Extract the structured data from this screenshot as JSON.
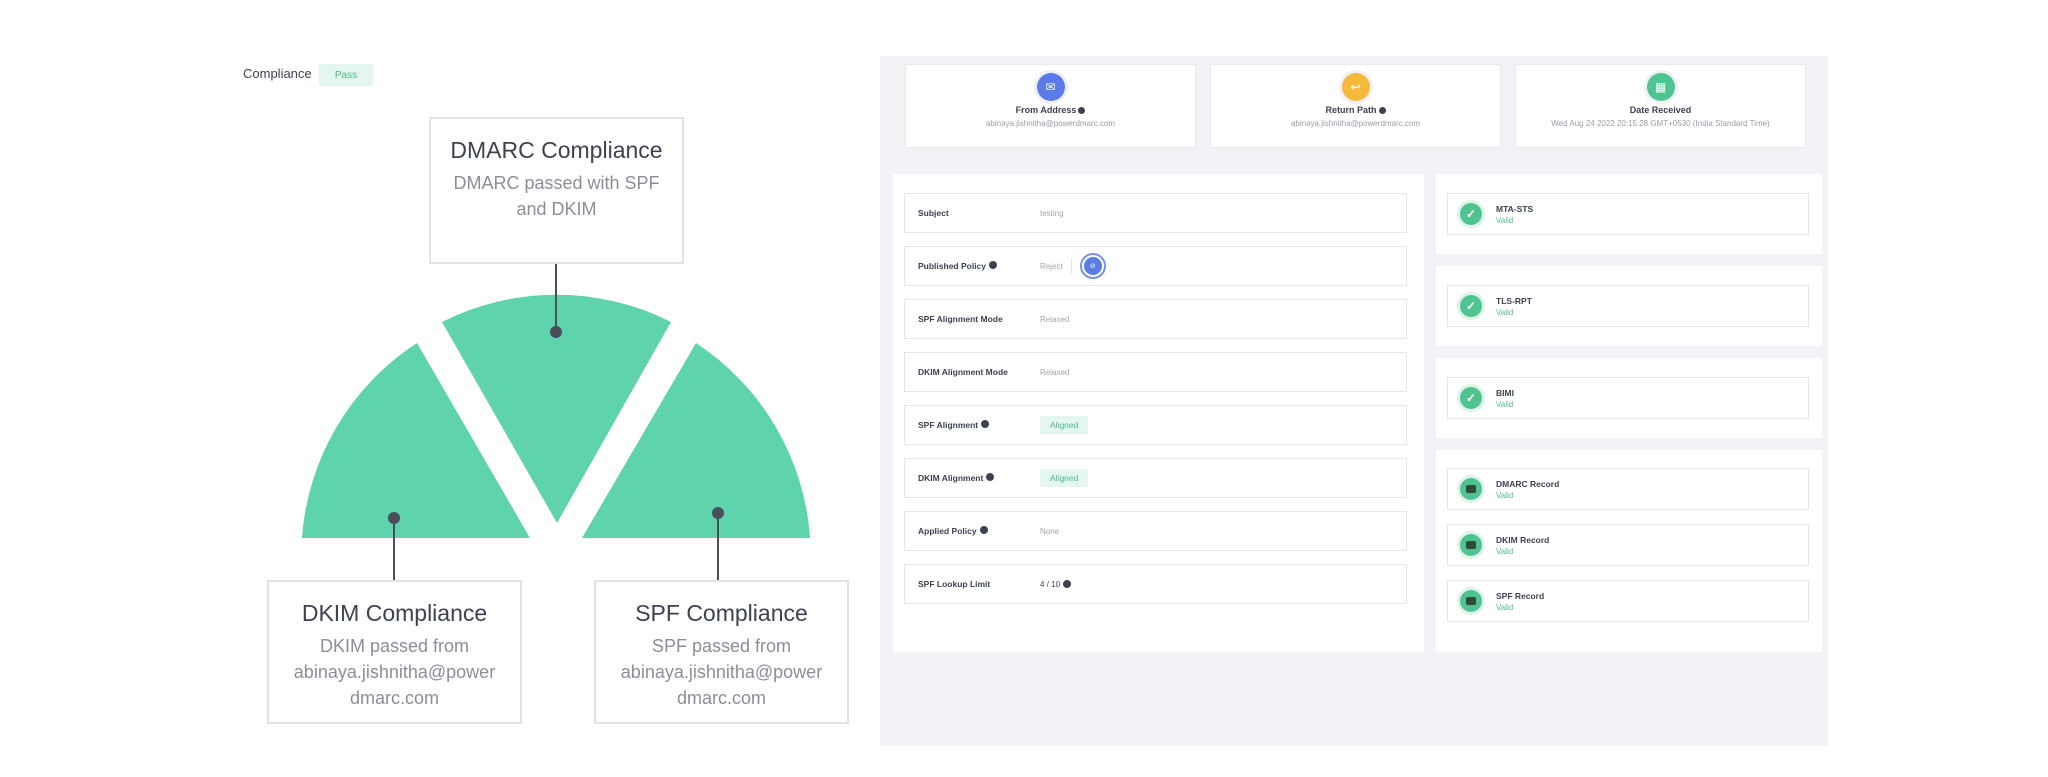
{
  "compliance": {
    "label": "Compliance",
    "badge": "Pass"
  },
  "diagram": {
    "dmarc": {
      "title": "DMARC Compliance",
      "desc_line1": "DMARC passed with SPF",
      "desc_line2": "and DKIM"
    },
    "dkim": {
      "title": "DKIM Compliance",
      "desc_line1": "DKIM passed from",
      "desc_line2": "abinaya.jishnitha@power",
      "desc_line3": "dmarc.com"
    },
    "spf": {
      "title": "SPF Compliance",
      "desc_line1": "SPF passed from",
      "desc_line2": "abinaya.jishnitha@power",
      "desc_line3": "dmarc.com"
    },
    "colors": {
      "segment": "#5fd3ac",
      "line": "#4a4d5c",
      "border": "#dfe2e6"
    }
  },
  "info_cards": {
    "from": {
      "label": "From Address",
      "value": "abinaya.jishnitha@powerdmarc.com",
      "icon": "envelope-icon",
      "color": "#5b7be8"
    },
    "return": {
      "label": "Return Path",
      "value": "abinaya.jishnitha@powerdmarc.com",
      "icon": "return-path-icon",
      "color": "#f5b93b"
    },
    "date": {
      "label": "Date Received",
      "value": "Wed Aug 24 2022 20:15:28 GMT+0530 (India Standard Time)",
      "icon": "calendar-icon",
      "color": "#4fc491"
    }
  },
  "details": {
    "subject": {
      "key": "Subject",
      "value": "testing"
    },
    "published_policy": {
      "key": "Published Policy",
      "value": "Reject"
    },
    "spf_alignment_mode": {
      "key": "SPF Alignment Mode",
      "value": "Relaxed"
    },
    "dkim_alignment_mode": {
      "key": "DKIM Alignment Mode",
      "value": "Relaxed"
    },
    "spf_alignment": {
      "key": "SPF Alignment",
      "value": "Aligned"
    },
    "dkim_alignment": {
      "key": "DKIM Alignment",
      "value": "Aligned"
    },
    "applied_policy": {
      "key": "Applied Policy",
      "value": "None"
    },
    "spf_lookup": {
      "key": "SPF Lookup Limit",
      "value": "4 / 10"
    }
  },
  "status": {
    "mta_sts": {
      "name": "MTA-STS",
      "value": "Valid"
    },
    "tls_rpt": {
      "name": "TLS-RPT",
      "value": "Valid"
    },
    "bimi": {
      "name": "BIMI",
      "value": "Valid"
    },
    "dmarc_record": {
      "name": "DMARC Record",
      "value": "Valid"
    },
    "dkim_record": {
      "name": "DKIM Record",
      "value": "Valid"
    },
    "spf_record": {
      "name": "SPF Record",
      "value": "Valid"
    }
  }
}
